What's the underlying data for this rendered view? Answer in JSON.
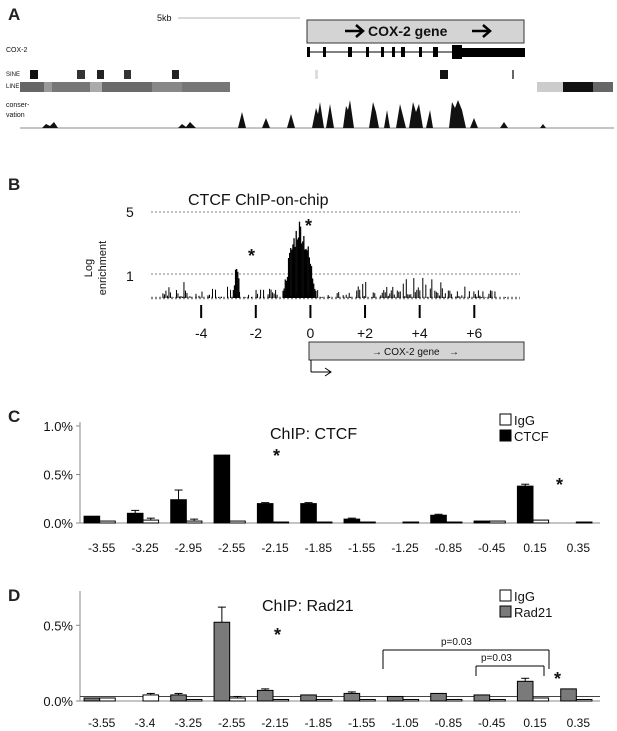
{
  "panels": {
    "a": {
      "letter": "A",
      "scale_label": "5kb",
      "gene_box_label": "COX-2 gene",
      "track_labels": [
        "COX-2",
        "SINE",
        "LINE",
        "conser-",
        "vation"
      ]
    },
    "b": {
      "letter": "B",
      "title": "CTCF ChIP-on-chip",
      "ylabel_line1": "Log",
      "ylabel_line2": "enrichment",
      "gene_box_label": "COX-2 gene"
    },
    "c": {
      "letter": "C"
    },
    "d": {
      "letter": "D"
    }
  },
  "colors": {
    "igg": "#ffffff",
    "ctcf": "#000000",
    "rad21": "#7a7a7a",
    "gene_box": "#d4d4d4"
  },
  "chart_data": [
    {
      "id": "panel-b",
      "type": "area",
      "title": "CTCF ChIP-on-chip",
      "ylabel": "Log enrichment",
      "yticks": [
        "5",
        "1",
        ""
      ],
      "xticks": [
        "-4",
        "-2",
        "0",
        "+2",
        "+4",
        "+6"
      ],
      "xlim": [
        -5.8,
        7.6
      ],
      "annotations": [
        "*",
        "*"
      ],
      "peaks": [
        {
          "x": -2.7,
          "y": 1.6,
          "star": true
        },
        {
          "x": -0.4,
          "y": 4.2,
          "star": true
        }
      ]
    },
    {
      "id": "panel-c",
      "type": "bar",
      "title": "ChIP: CTCF",
      "yticks": [
        "0.0%",
        "0.5%",
        "1.0%"
      ],
      "ylim": [
        0,
        1.0
      ],
      "categories": [
        "-3.55",
        "-3.25",
        "-2.95",
        "-2.55",
        "-2.15",
        "-1.85",
        "-1.55",
        "-1.25",
        "-0.85",
        "-0.45",
        "0.15",
        "0.35"
      ],
      "series": [
        {
          "name": "IgG",
          "values": [
            0.02,
            0.03,
            0.02,
            0.02,
            0.01,
            0.01,
            0.01,
            0.01,
            0.01,
            0.02,
            0.03,
            0.01
          ],
          "errors": [
            0,
            0.02,
            0.02,
            0,
            0,
            0,
            0,
            0,
            0,
            0,
            0,
            0
          ]
        },
        {
          "name": "CTCF",
          "values": [
            0.07,
            0.1,
            0.24,
            0.7,
            0.2,
            0.2,
            0.04,
            0.0,
            0.08,
            0.02,
            0.38,
            0.0
          ],
          "errors": [
            0,
            0.03,
            0.1,
            0,
            0.01,
            0.01,
            0.01,
            0,
            0.01,
            0,
            0.02,
            0
          ]
        }
      ],
      "annotations": [
        "*",
        "*"
      ]
    },
    {
      "id": "panel-d",
      "type": "bar",
      "title": "ChIP: Rad21",
      "yticks": [
        "0.0%",
        "0.5%"
      ],
      "ylim": [
        0,
        0.7
      ],
      "categories": [
        "-3.55",
        "-3.4",
        "-3.25",
        "-2.55",
        "-2.15",
        "-1.85",
        "-1.55",
        "-1.05",
        "-0.85",
        "-0.45",
        "0.15",
        "0.35"
      ],
      "series": [
        {
          "name": "IgG",
          "values": [
            0.02,
            0.04,
            0.01,
            0.02,
            0.01,
            0.01,
            0.01,
            0.01,
            0.01,
            0.01,
            0.02,
            0.01
          ],
          "errors": [
            0,
            0.01,
            0,
            0.01,
            0,
            0,
            0,
            0,
            0,
            0,
            0,
            0
          ]
        },
        {
          "name": "Rad21",
          "values": [
            0.02,
            0.0,
            0.04,
            0.52,
            0.07,
            0.04,
            0.05,
            0.03,
            0.05,
            0.04,
            0.13,
            0.08
          ],
          "errors": [
            0,
            0,
            0.01,
            0.1,
            0.01,
            0,
            0.01,
            0,
            0,
            0,
            0.02,
            0
          ]
        }
      ],
      "brackets": [
        "p=0.03",
        "p=0.03"
      ],
      "annotations": [
        "*",
        "*"
      ]
    }
  ]
}
